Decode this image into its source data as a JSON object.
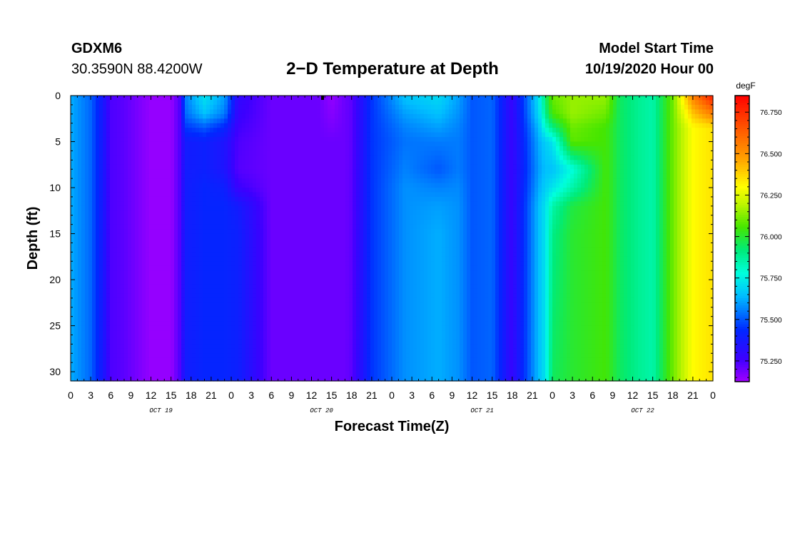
{
  "header": {
    "station_id": "GDXM6",
    "coordinates": "30.3590N 88.4200W",
    "title": "2−D Temperature at Depth",
    "model_start_label": "Model Start Time",
    "model_start_value": "10/19/2020 Hour 00"
  },
  "chart_data": {
    "type": "heatmap",
    "title": "2−D Temperature at Depth",
    "xlabel": "Forecast Time(Z)",
    "ylabel": "Depth (ft)",
    "x_range_hours": [
      0,
      96
    ],
    "y_range_ft": [
      0,
      31
    ],
    "x_tick_labels": [
      "0",
      "3",
      "6",
      "9",
      "12",
      "15",
      "18",
      "21",
      "0",
      "3",
      "6",
      "9",
      "12",
      "15",
      "18",
      "21",
      "0",
      "3",
      "6",
      "9",
      "12",
      "15",
      "18",
      "21",
      "0",
      "3",
      "6",
      "9",
      "12",
      "15",
      "18",
      "21",
      "0"
    ],
    "day_labels": [
      "OCT 19",
      "OCT 20",
      "OCT 21",
      "OCT 22"
    ],
    "y_ticks": [
      0,
      5,
      10,
      15,
      20,
      25,
      30
    ],
    "colorbar": {
      "unit": "degF",
      "min": 75.125,
      "max": 76.85,
      "labels": [
        "76.750",
        "76.500",
        "76.250",
        "76.000",
        "75.750",
        "75.500",
        "75.250"
      ],
      "label_values": [
        76.75,
        76.5,
        76.25,
        76.0,
        75.75,
        75.5,
        75.25
      ]
    },
    "time_hours": [
      0,
      3,
      5,
      6,
      8,
      12,
      15,
      16.5,
      17,
      20,
      23,
      25,
      30,
      37,
      39,
      41,
      42,
      45,
      50,
      55,
      58,
      60,
      63,
      66,
      70,
      71,
      72,
      75,
      80,
      82,
      85,
      87,
      90,
      93,
      96
    ],
    "depth_ft": [
      0,
      2,
      3.5,
      5,
      8,
      10,
      12,
      15,
      31
    ],
    "temperature_F": [
      [
        75.62,
        75.62,
        75.62,
        75.62,
        75.62,
        75.62,
        75.62,
        75.62,
        75.62
      ],
      [
        75.52,
        75.52,
        75.52,
        75.52,
        75.52,
        75.52,
        75.52,
        75.52,
        75.52
      ],
      [
        75.35,
        75.35,
        75.35,
        75.35,
        75.35,
        75.35,
        75.35,
        75.35,
        75.35
      ],
      [
        75.24,
        75.24,
        75.24,
        75.24,
        75.24,
        75.24,
        75.24,
        75.24,
        75.24
      ],
      [
        75.22,
        75.22,
        75.22,
        75.22,
        75.22,
        75.22,
        75.22,
        75.22,
        75.22
      ],
      [
        75.14,
        75.14,
        75.14,
        75.14,
        75.14,
        75.14,
        75.14,
        75.14,
        75.14
      ],
      [
        75.14,
        75.14,
        75.14,
        75.14,
        75.14,
        75.14,
        75.14,
        75.14,
        75.14
      ],
      [
        75.25,
        75.25,
        75.25,
        75.25,
        75.25,
        75.25,
        75.25,
        75.25,
        75.25
      ],
      [
        75.55,
        75.52,
        75.45,
        75.38,
        75.38,
        75.38,
        75.38,
        75.38,
        75.38
      ],
      [
        75.72,
        75.65,
        75.5,
        75.4,
        75.4,
        75.42,
        75.42,
        75.42,
        75.42
      ],
      [
        75.6,
        75.55,
        75.42,
        75.35,
        75.35,
        75.4,
        75.42,
        75.42,
        75.42
      ],
      [
        75.3,
        75.28,
        75.26,
        75.24,
        75.23,
        75.27,
        75.38,
        75.4,
        75.4
      ],
      [
        75.2,
        75.2,
        75.2,
        75.2,
        75.2,
        75.2,
        75.2,
        75.2,
        75.2
      ],
      [
        75.2,
        75.2,
        75.2,
        75.2,
        75.2,
        75.2,
        75.2,
        75.2,
        75.2
      ],
      [
        75.14,
        75.16,
        75.18,
        75.2,
        75.2,
        75.2,
        75.2,
        75.2,
        75.2
      ],
      [
        75.2,
        75.2,
        75.2,
        75.2,
        75.2,
        75.2,
        75.2,
        75.2,
        75.2
      ],
      [
        75.22,
        75.22,
        75.22,
        75.22,
        75.22,
        75.22,
        75.22,
        75.22,
        75.22
      ],
      [
        75.45,
        75.45,
        75.45,
        75.45,
        75.45,
        75.45,
        75.45,
        75.45,
        75.45
      ],
      [
        75.66,
        75.6,
        75.56,
        75.54,
        75.56,
        75.58,
        75.58,
        75.58,
        75.58
      ],
      [
        75.7,
        75.65,
        75.6,
        75.55,
        75.5,
        75.56,
        75.6,
        75.62,
        75.62
      ],
      [
        75.6,
        75.58,
        75.56,
        75.55,
        75.55,
        75.57,
        75.58,
        75.58,
        75.58
      ],
      [
        75.5,
        75.5,
        75.5,
        75.5,
        75.5,
        75.5,
        75.5,
        75.5,
        75.5
      ],
      [
        75.52,
        75.52,
        75.52,
        75.52,
        75.52,
        75.52,
        75.52,
        75.52,
        75.52
      ],
      [
        75.28,
        75.28,
        75.28,
        75.28,
        75.28,
        75.28,
        75.28,
        75.28,
        75.28
      ],
      [
        75.72,
        75.7,
        75.65,
        75.62,
        75.6,
        75.62,
        75.65,
        75.65,
        75.65
      ],
      [
        75.95,
        75.9,
        75.8,
        75.68,
        75.65,
        75.68,
        75.72,
        75.72,
        75.72
      ],
      [
        76.1,
        76.05,
        75.9,
        75.72,
        75.65,
        75.72,
        75.85,
        75.9,
        75.95
      ],
      [
        76.15,
        76.15,
        76.1,
        76.08,
        75.78,
        75.85,
        75.98,
        76.0,
        76.0
      ],
      [
        76.15,
        76.1,
        76.05,
        76.05,
        76.05,
        76.05,
        76.05,
        76.05,
        76.05
      ],
      [
        75.95,
        75.95,
        75.95,
        75.95,
        75.95,
        75.95,
        75.95,
        75.95,
        75.95
      ],
      [
        75.88,
        75.88,
        75.88,
        75.88,
        75.88,
        75.88,
        75.88,
        75.88,
        75.88
      ],
      [
        75.85,
        75.85,
        75.85,
        75.85,
        75.85,
        75.85,
        75.85,
        75.85,
        75.85
      ],
      [
        76.1,
        76.1,
        76.1,
        76.1,
        76.1,
        76.1,
        76.1,
        76.1,
        76.1
      ],
      [
        76.55,
        76.4,
        76.3,
        76.3,
        76.3,
        76.3,
        76.3,
        76.3,
        76.3
      ],
      [
        76.8,
        76.55,
        76.35,
        76.35,
        76.35,
        76.35,
        76.35,
        76.35,
        76.35
      ]
    ]
  }
}
